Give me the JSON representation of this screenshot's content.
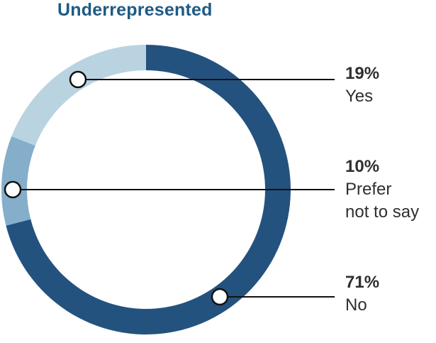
{
  "chart_data": {
    "type": "pie",
    "style": "donut",
    "title": "Underrepresented",
    "slices": [
      {
        "label": "No",
        "percent_label": "71%",
        "value": 71,
        "color": "#24527f"
      },
      {
        "label": "Prefer\nnot to say",
        "percent_label": "10%",
        "value": 10,
        "color": "#85aecb"
      },
      {
        "label": "Yes",
        "percent_label": "19%",
        "value": 19,
        "color": "#b9d3e1"
      }
    ]
  }
}
